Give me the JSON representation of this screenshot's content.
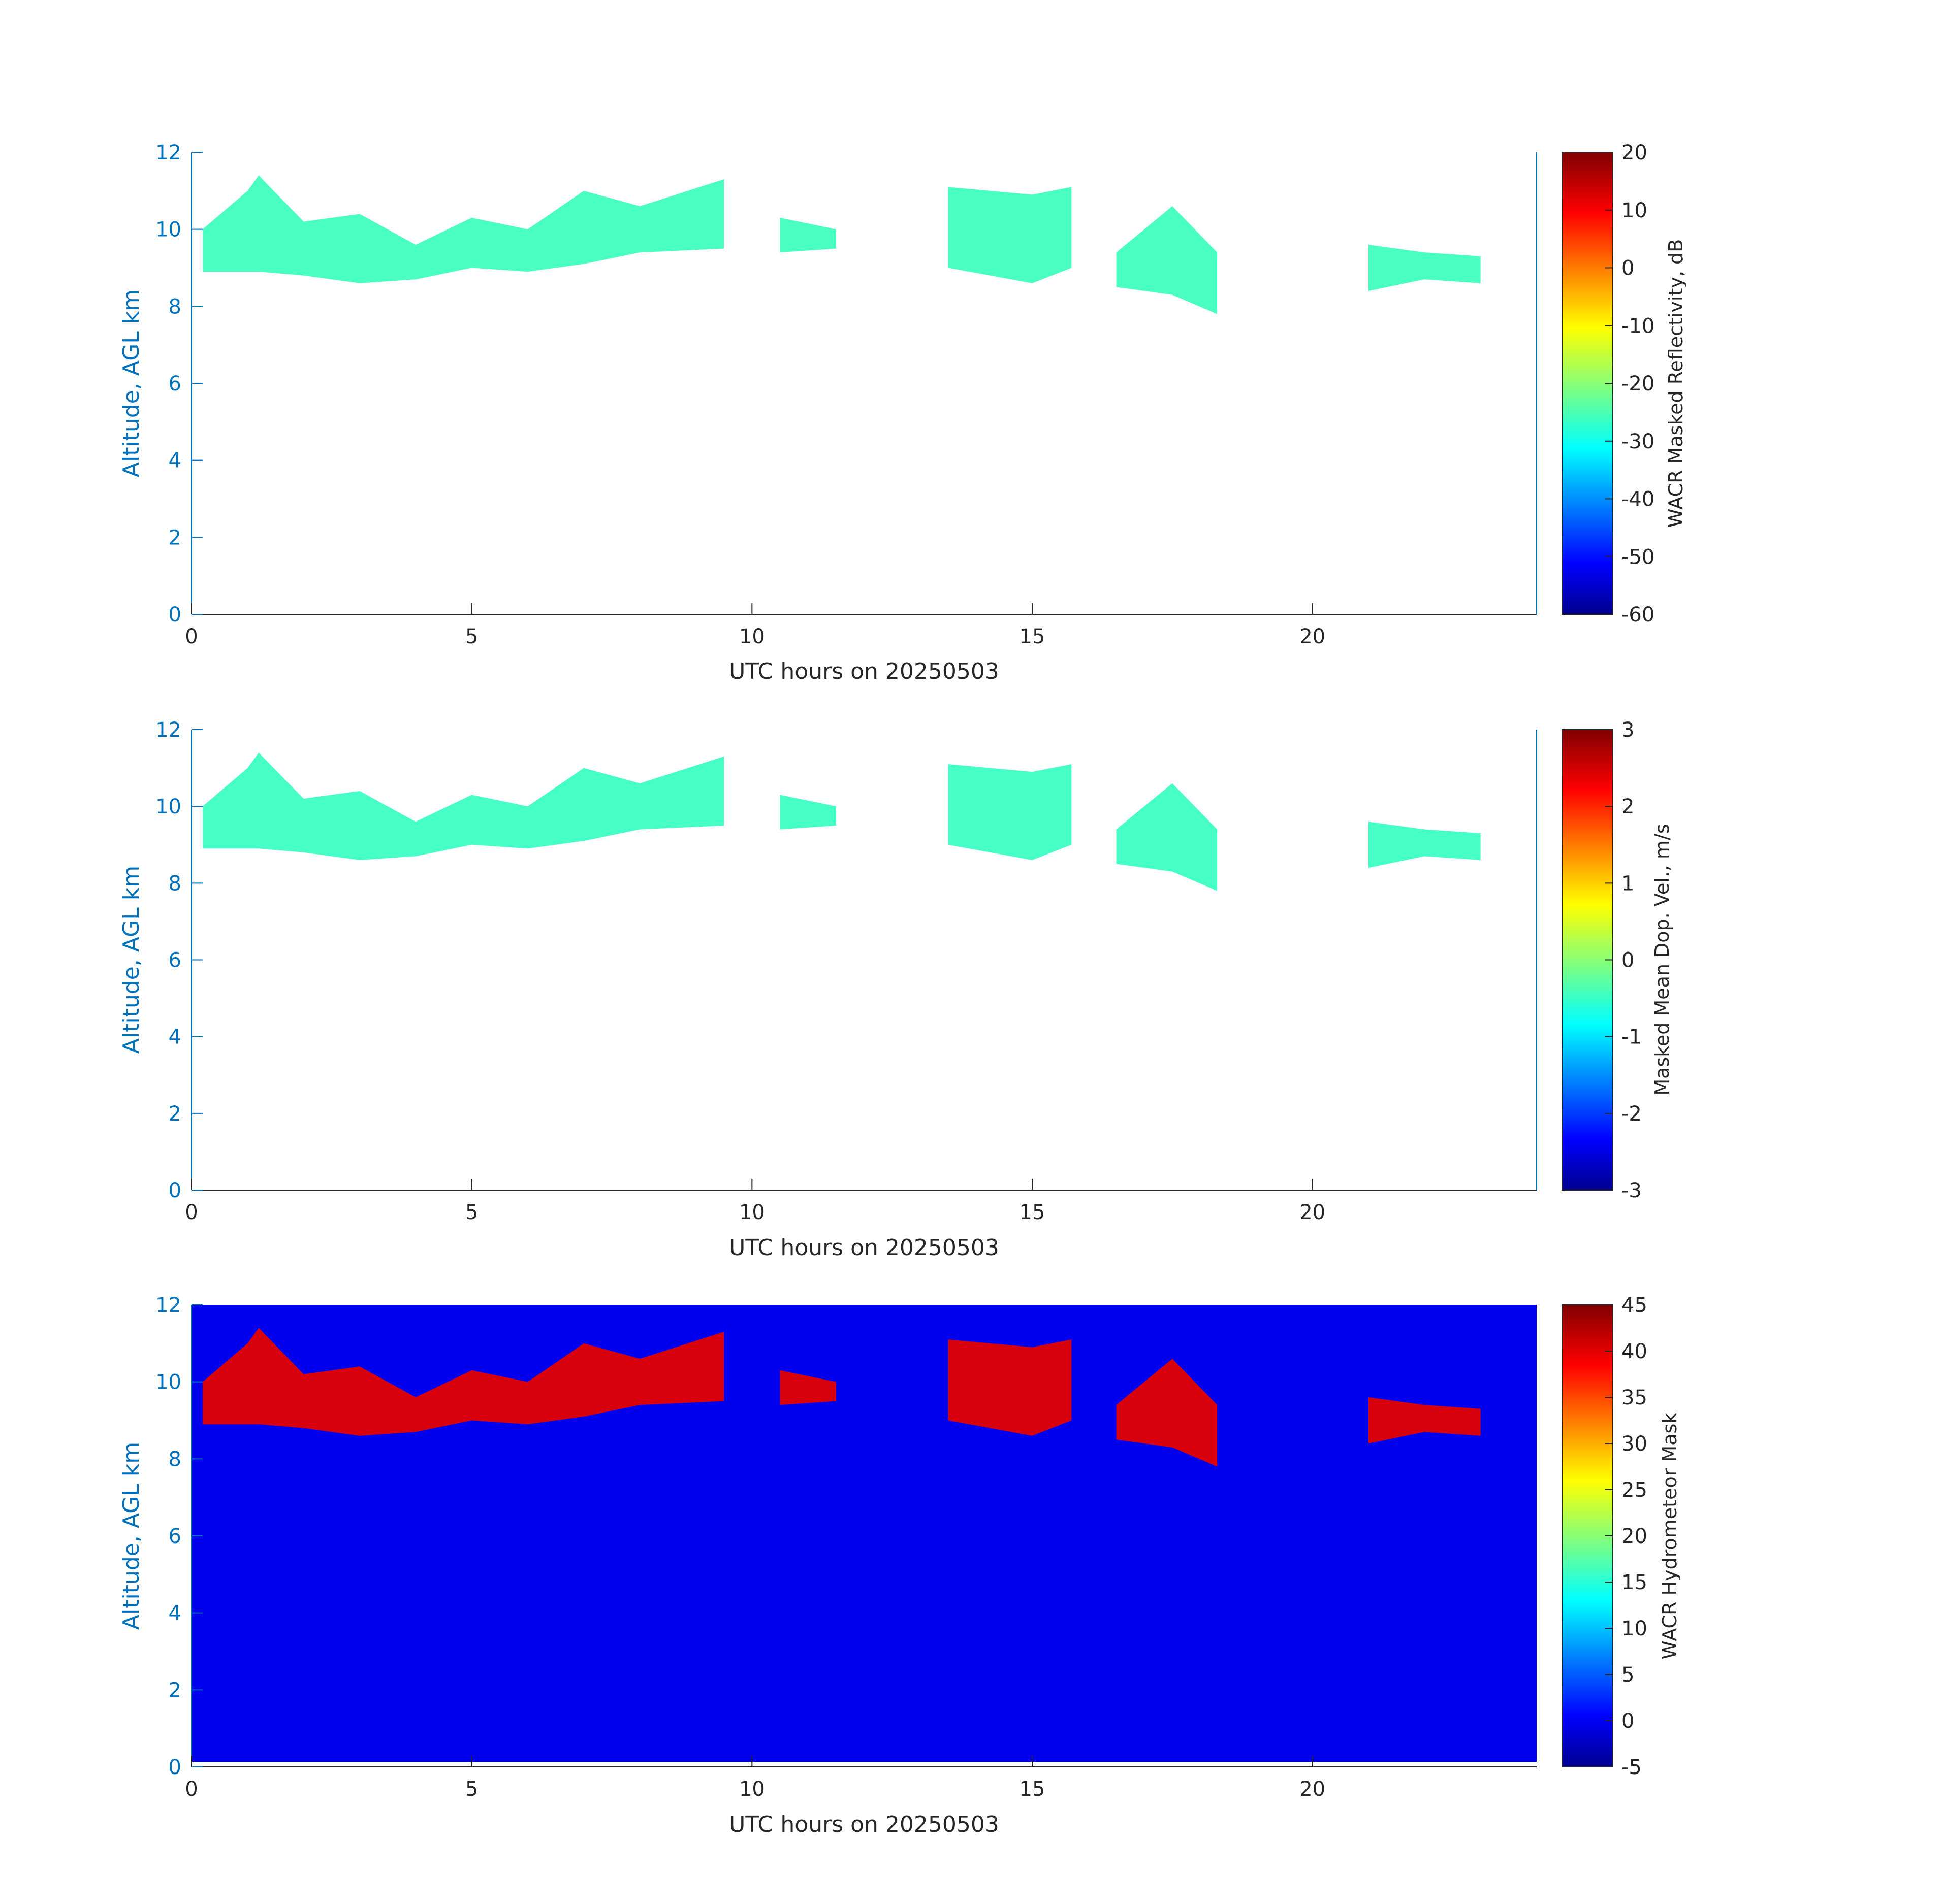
{
  "colors": {
    "axis_blue": "#0072BD",
    "axis_dark": "#262626",
    "mask_background": "#0000EE"
  },
  "chart_data": [
    {
      "type": "heatmap",
      "xlabel": "UTC hours on 20250503",
      "ylabel": "Altitude, AGL km",
      "xlim": [
        0,
        24
      ],
      "ylim": [
        0,
        12
      ],
      "x_ticks": [
        "0",
        "5",
        "10",
        "15",
        "20"
      ],
      "y_ticks": [
        "0",
        "2",
        "4",
        "6",
        "8",
        "10",
        "12"
      ],
      "colorbar": {
        "label": "WACR Masked Reflectivity, dB",
        "ticks": [
          "-60",
          "-50",
          "-40",
          "-30",
          "-20",
          "-10",
          "0",
          "10",
          "20"
        ],
        "range": [
          -60,
          20
        ],
        "colormap": "jet"
      },
      "cloud_layer": {
        "time_hours": [
          0.2,
          1.0,
          1.2,
          2.0,
          3.0,
          4.0,
          5.0,
          6.0,
          7.0,
          8.0,
          9.5,
          10.5,
          11.5,
          13.5,
          15.0,
          15.7,
          16.5,
          17.5,
          18.3,
          21.0,
          22.0,
          23.0
        ],
        "cloud_base_km": [
          8.9,
          8.9,
          8.9,
          8.8,
          8.6,
          8.7,
          9.0,
          8.9,
          9.1,
          9.4,
          9.5,
          9.4,
          9.5,
          9.0,
          8.6,
          9.0,
          8.5,
          8.3,
          7.8,
          8.4,
          8.7,
          8.6
        ],
        "cloud_top_km": [
          10.0,
          11.0,
          11.4,
          10.2,
          10.4,
          9.6,
          10.3,
          10.0,
          11.0,
          10.6,
          11.3,
          10.3,
          10.0,
          11.1,
          10.9,
          11.1,
          9.4,
          10.6,
          9.4,
          9.6,
          9.4,
          9.3
        ],
        "typical_value": -25
      },
      "notes_visible": "none"
    },
    {
      "type": "heatmap",
      "xlabel": "UTC hours on 20250503",
      "ylabel": "Altitude, AGL km",
      "xlim": [
        0,
        24
      ],
      "ylim": [
        0,
        12
      ],
      "x_ticks": [
        "0",
        "5",
        "10",
        "15",
        "20"
      ],
      "y_ticks": [
        "0",
        "2",
        "4",
        "6",
        "8",
        "10",
        "12"
      ],
      "colorbar": {
        "label": "Masked Mean Dop. Vel., m/s",
        "ticks": [
          "-3",
          "-2",
          "-1",
          "0",
          "1",
          "2",
          "3"
        ],
        "range": [
          -3,
          3
        ],
        "colormap": "jet"
      },
      "typical_value": -0.4
    },
    {
      "type": "heatmap",
      "xlabel": "UTC hours on 20250503",
      "ylabel": "Altitude, AGL km",
      "xlim": [
        0,
        24
      ],
      "ylim": [
        0,
        12
      ],
      "x_ticks": [
        "0",
        "5",
        "10",
        "15",
        "20"
      ],
      "y_ticks": [
        "0",
        "2",
        "4",
        "6",
        "8",
        "10",
        "12"
      ],
      "colorbar": {
        "label": "WACR Hydrometeor Mask",
        "ticks": [
          "-5",
          "0",
          "5",
          "10",
          "15",
          "20",
          "25",
          "30",
          "35",
          "40",
          "45"
        ],
        "range": [
          -5,
          45
        ],
        "colormap": "jet"
      },
      "background_value": 0,
      "cloud_value": 40
    }
  ]
}
